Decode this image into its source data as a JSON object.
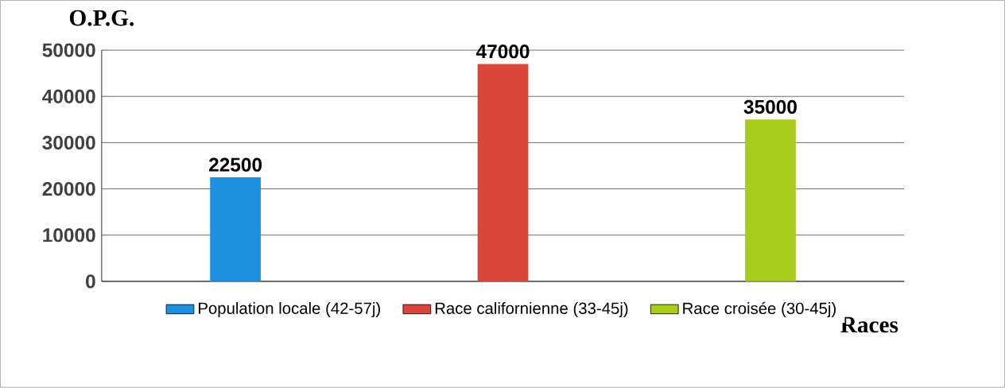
{
  "chart_data": {
    "type": "bar",
    "ylabel": "O.P.G.",
    "xlabel": "Races",
    "categories": [
      null,
      null,
      null
    ],
    "series": [
      {
        "name": "Population locale (42-57j)",
        "color": "#1f8fe0",
        "values": [
          22500,
          null,
          null
        ]
      },
      {
        "name": "Race californienne (33-45j)",
        "color": "#d9473b",
        "values": [
          null,
          47000,
          null
        ]
      },
      {
        "name": "Race croisée (30-45j)",
        "color": "#a8cc1a",
        "values": [
          null,
          null,
          35000
        ]
      }
    ],
    "ylim": [
      0,
      50000
    ],
    "yticks": [
      0,
      10000,
      20000,
      30000,
      40000,
      50000
    ],
    "grid": "y",
    "legend": "bottom",
    "data_labels": true,
    "tick_labels": "y"
  }
}
